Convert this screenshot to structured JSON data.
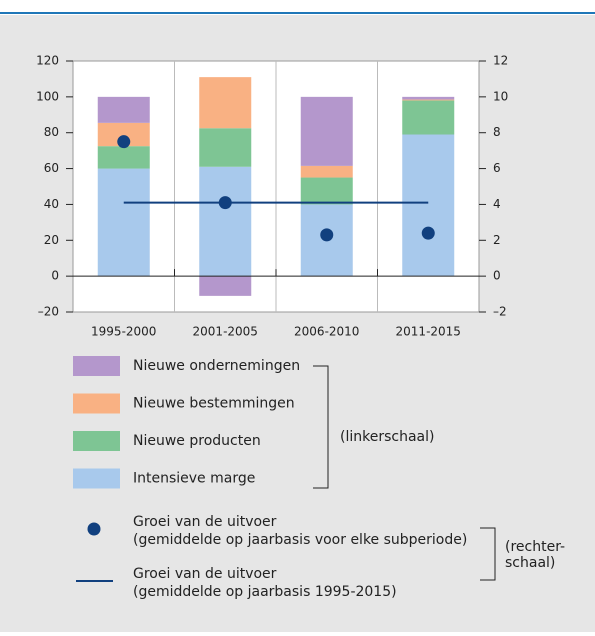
{
  "chart_data": {
    "type": "bar",
    "stacked": true,
    "categories": [
      "1995-2000",
      "2001-2005",
      "2006-2010",
      "2011-2015"
    ],
    "series": [
      {
        "name": "Intensieve marge",
        "color": "#a8c9ec",
        "values": [
          60,
          61,
          40,
          79
        ]
      },
      {
        "name": "Nieuwe producten",
        "color": "#7ec594",
        "values": [
          12.5,
          21.5,
          15,
          19
        ]
      },
      {
        "name": "Nieuwe bestemmingen",
        "color": "#f9b183",
        "values": [
          13,
          28.5,
          6.5,
          0.5
        ]
      },
      {
        "name": "Nieuwe ondernemingen",
        "color": "#b497cc",
        "values": [
          14.5,
          -11,
          38.5,
          1.5
        ]
      },
      {
        "name": "Groei van de uitvoer",
        "description": "(gemiddelde op jaarbasis voor elke subperiode)",
        "type": "scatter",
        "axis": "y2",
        "color": "#11407f",
        "values": [
          7.5,
          4.1,
          2.3,
          2.4
        ]
      }
    ],
    "average_line": {
      "name": "Groei van de uitvoer",
      "description": "(gemiddelde op jaarbasis 1995-2015)",
      "axis": "y2",
      "color": "#11407f",
      "value": 4.1
    },
    "left_scale_note": "(linkerschaal)",
    "right_scale_note": [
      "(rechter-",
      "schaal)"
    ],
    "ylim": [
      -20,
      120
    ],
    "yticks": [
      {
        "value": -20,
        "label": "–20"
      },
      0,
      20,
      40,
      60,
      80,
      100,
      120
    ],
    "y2lim": [
      -2,
      12
    ],
    "y2ticks": [
      {
        "value": -2,
        "label": "–2"
      },
      0,
      2,
      4,
      6,
      8,
      10,
      12
    ]
  }
}
